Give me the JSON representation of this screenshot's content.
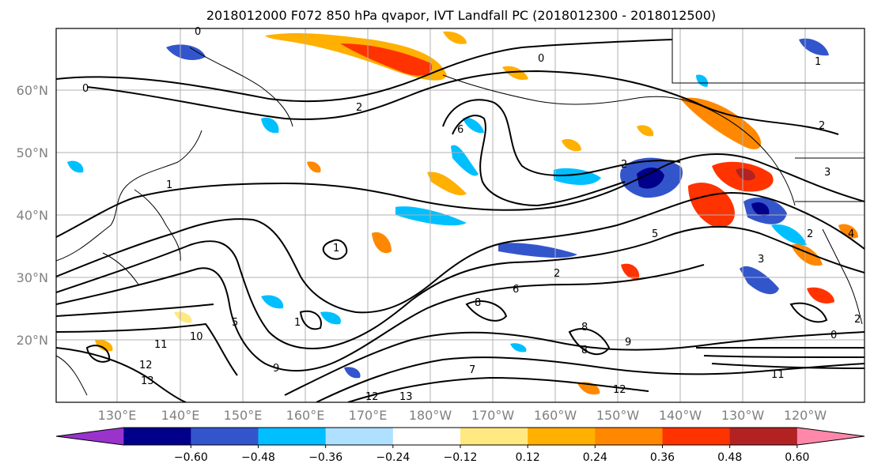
{
  "title": "2018012000 F072 850 hPa qvapor, IVT Landfall PC (2018012300 - 2018012500)",
  "lat_labels": [
    "60°N",
    "50°N",
    "40°N",
    "30°N",
    "20°N"
  ],
  "lon_labels": [
    "130°E",
    "140°E",
    "150°E",
    "160°E",
    "170°E",
    "180°W",
    "170°W",
    "160°W",
    "150°W",
    "140°W",
    "130°W",
    "120°W"
  ],
  "colorbar": {
    "colors": [
      "#9933cc",
      "#00008b",
      "#3355cc",
      "#00bfff",
      "#b0e0ff",
      "#ffffff",
      "#ffe980",
      "#ffb000",
      "#ff8800",
      "#ff3300",
      "#b22222",
      "#ff88aa"
    ],
    "tick_labels": [
      "−0.60",
      "−0.48",
      "−0.36",
      "−0.24",
      "−0.12",
      "0.12",
      "0.24",
      "0.36",
      "0.48",
      "0.60"
    ]
  },
  "contour_labels": [
    "0",
    "0",
    "1",
    "2",
    "6",
    "2",
    "8",
    "10",
    "11",
    "12",
    "13",
    "12",
    "9",
    "7",
    "8",
    "2",
    "3",
    "5",
    "1",
    "1",
    "0",
    "11",
    "12",
    "9",
    "8",
    "2",
    "5",
    "6",
    "2",
    "3",
    "2",
    "4",
    "0",
    "1",
    "13"
  ]
}
